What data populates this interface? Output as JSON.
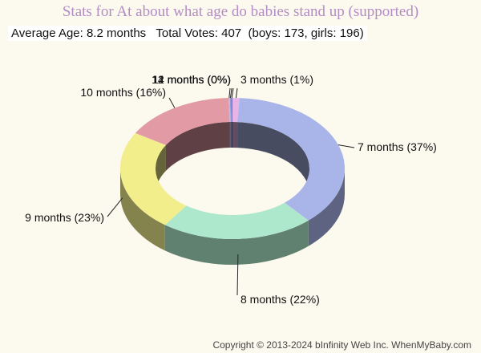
{
  "title": "Stats for At about what age do babies stand up (supported)",
  "summary": {
    "text": "Average Age: 8.2 months   Total Votes: 407  (boys: 173, girls: 196)"
  },
  "copyright": "Copyright © 2013-2024 bInfinity Web Inc.  WhenMyBaby.com",
  "chart_data": {
    "type": "pie",
    "style": "3d-donut",
    "slices": [
      {
        "label": "3 months (1%)",
        "value": 1,
        "color": "#e8b4e8"
      },
      {
        "label": "7 months (37%)",
        "value": 37,
        "color": "#a9b4e8"
      },
      {
        "label": "8 months (22%)",
        "value": 22,
        "color": "#aee8cc"
      },
      {
        "label": "9 months (23%)",
        "value": 23,
        "color": "#f2ee8c"
      },
      {
        "label": "10 months (16%)",
        "value": 16,
        "color": "#e29aa4"
      },
      {
        "label": "11 months (0%)",
        "value": 0,
        "color": "#c8b4e0"
      },
      {
        "label": "12 months (0%)",
        "value": 0,
        "color": "#8c9cec"
      },
      {
        "label": "14 months (0%)",
        "value": 0,
        "color": "#6c7cd8"
      }
    ]
  }
}
